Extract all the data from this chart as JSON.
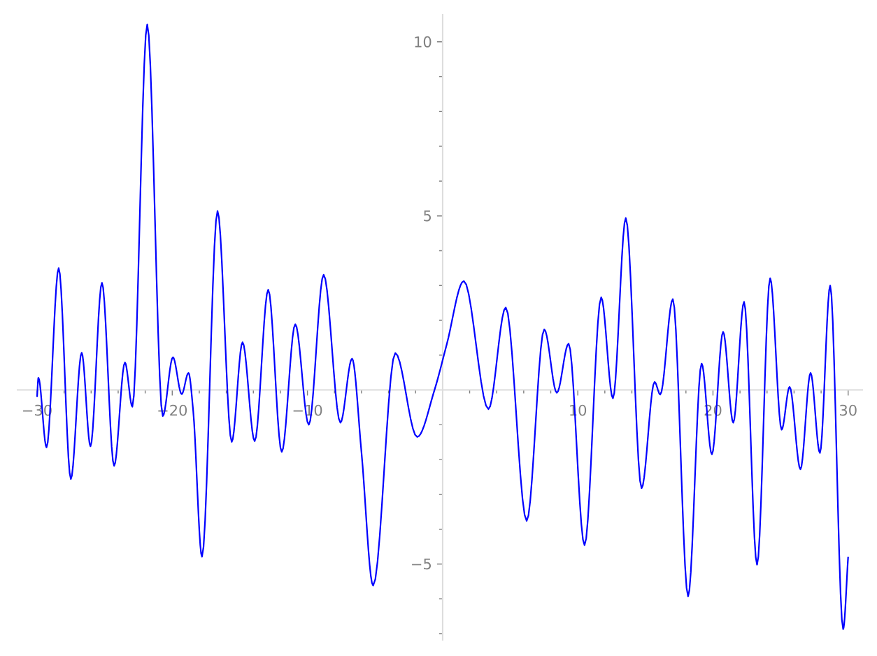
{
  "chart_data": {
    "type": "line",
    "x": [
      -30,
      -29.9,
      -29.3,
      -28.4,
      -27.5,
      -26.7,
      -26.05,
      -25.2,
      -24.3,
      -23.5,
      -22.95,
      -21.85,
      -20.7,
      -19.95,
      -19.3,
      -18.8,
      -18.45,
      -17.8,
      -16.65,
      -15.6,
      -14.8,
      -13.9,
      -12.9,
      -11.9,
      -10.9,
      -9.9,
      -8.8,
      -7.56,
      -6.7,
      -6.0,
      -5.14,
      -3.5,
      -1.88,
      -0.6,
      0.3,
      1.57,
      3.39,
      4.67,
      6.22,
      7.52,
      8.45,
      9.32,
      10.5,
      11.73,
      12.6,
      13.55,
      14.72,
      15.68,
      16.1,
      17.03,
      18.16,
      19.16,
      19.92,
      20.75,
      21.5,
      22.3,
      23.26,
      24.23,
      25.08,
      25.67,
      26.47,
      27.22,
      27.91,
      28.67,
      29.63,
      30
    ],
    "values": [
      -0.2,
      0.35,
      -1.65,
      3.5,
      -2.56,
      1.07,
      -1.62,
      3.08,
      -2.18,
      0.79,
      -0.48,
      10.5,
      -0.75,
      0.94,
      -0.12,
      0.49,
      -0.6,
      -4.79,
      5.14,
      -1.49,
      1.37,
      -1.47,
      2.88,
      -1.78,
      1.89,
      -1.0,
      3.31,
      -0.94,
      0.9,
      -1.8,
      -5.62,
      1.06,
      -1.35,
      0.0,
      1.3,
      3.13,
      -0.55,
      2.37,
      -3.76,
      1.74,
      -0.08,
      1.33,
      -4.46,
      2.66,
      -0.24,
      4.94,
      -2.82,
      0.23,
      -0.13,
      2.61,
      -5.93,
      0.76,
      -1.85,
      1.67,
      -0.94,
      2.53,
      -5.02,
      3.21,
      -1.14,
      0.09,
      -2.28,
      0.49,
      -1.81,
      3.0,
      -6.87,
      -4.79
    ],
    "color": "#0000ff",
    "line_style": "solid",
    "xlim": [
      -31.5,
      31.1
    ],
    "ylim": [
      -7.2,
      10.8
    ],
    "xticks": [
      {
        "value": -30,
        "label": "−30"
      },
      {
        "value": -28,
        "label": null
      },
      {
        "value": -26,
        "label": null
      },
      {
        "value": -24,
        "label": null
      },
      {
        "value": -22,
        "label": null
      },
      {
        "value": -20,
        "label": "−20"
      },
      {
        "value": -18,
        "label": null
      },
      {
        "value": -16,
        "label": null
      },
      {
        "value": -14,
        "label": null
      },
      {
        "value": -12,
        "label": null
      },
      {
        "value": -10,
        "label": "−10"
      },
      {
        "value": -8,
        "label": null
      },
      {
        "value": -6,
        "label": null
      },
      {
        "value": -4,
        "label": null
      },
      {
        "value": -2,
        "label": null
      },
      {
        "value": 2,
        "label": null
      },
      {
        "value": 4,
        "label": null
      },
      {
        "value": 6,
        "label": null
      },
      {
        "value": 8,
        "label": null
      },
      {
        "value": 10,
        "label": "10"
      },
      {
        "value": 12,
        "label": null
      },
      {
        "value": 14,
        "label": null
      },
      {
        "value": 16,
        "label": null
      },
      {
        "value": 18,
        "label": null
      },
      {
        "value": 20,
        "label": "20"
      },
      {
        "value": 22,
        "label": null
      },
      {
        "value": 24,
        "label": null
      },
      {
        "value": 26,
        "label": null
      },
      {
        "value": 28,
        "label": null
      },
      {
        "value": 30,
        "label": "30"
      }
    ],
    "yticks": [
      {
        "value": -7,
        "label": null
      },
      {
        "value": -6,
        "label": null
      },
      {
        "value": -5,
        "label": "−5"
      },
      {
        "value": -4,
        "label": null
      },
      {
        "value": -3,
        "label": null
      },
      {
        "value": -2,
        "label": null
      },
      {
        "value": -1,
        "label": null
      },
      {
        "value": 1,
        "label": null
      },
      {
        "value": 2,
        "label": null
      },
      {
        "value": 3,
        "label": null
      },
      {
        "value": 4,
        "label": null
      },
      {
        "value": 5,
        "label": "5"
      },
      {
        "value": 6,
        "label": null
      },
      {
        "value": 7,
        "label": null
      },
      {
        "value": 8,
        "label": null
      },
      {
        "value": 9,
        "label": null
      },
      {
        "value": 10,
        "label": "10"
      }
    ]
  }
}
